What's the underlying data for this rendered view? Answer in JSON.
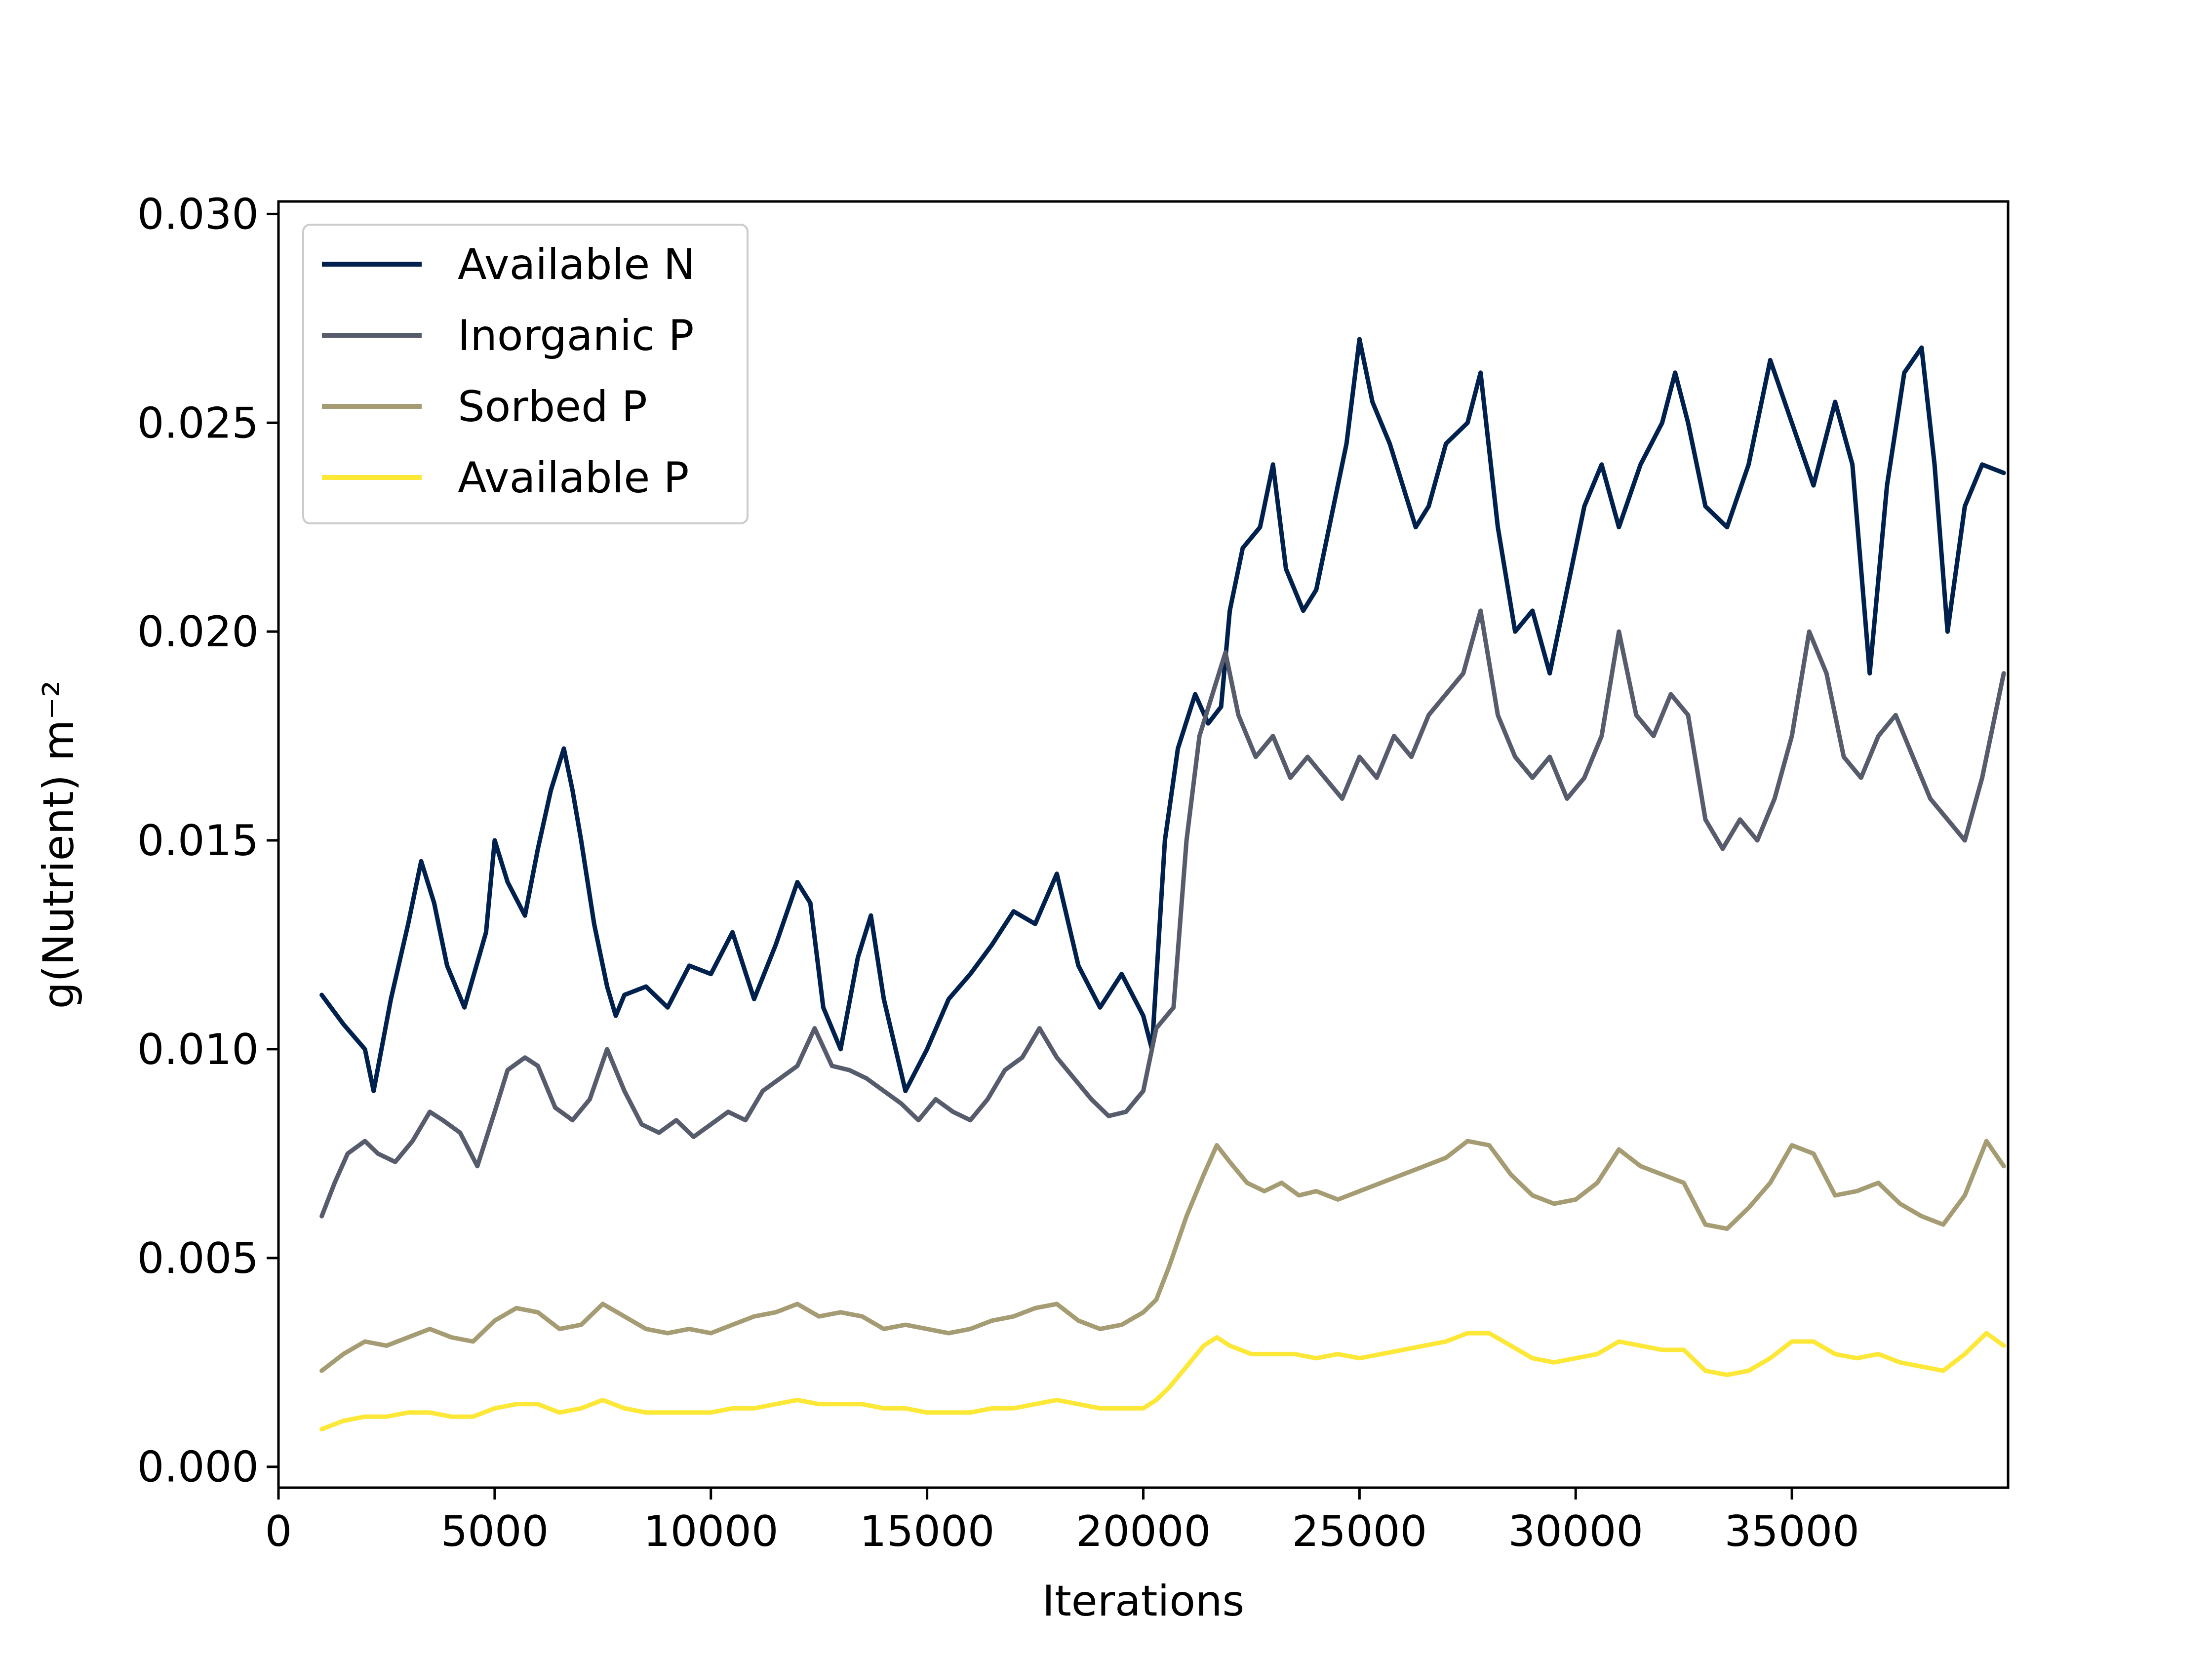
{
  "chart_data": {
    "type": "line",
    "title": "",
    "xlabel": "Iterations",
    "ylabel": "g(Nutrient) m⁻²",
    "xlim": [
      0,
      40000
    ],
    "ylim": [
      -0.0005,
      0.0303
    ],
    "xticks": [
      0,
      5000,
      10000,
      15000,
      20000,
      25000,
      30000,
      35000
    ],
    "xtick_labels": [
      "0",
      "5000",
      "10000",
      "15000",
      "20000",
      "25000",
      "30000",
      "35000"
    ],
    "yticks": [
      0.0,
      0.005,
      0.01,
      0.015,
      0.02,
      0.025,
      0.03
    ],
    "ytick_labels": [
      "0.000",
      "0.005",
      "0.010",
      "0.015",
      "0.020",
      "0.025",
      "0.030"
    ],
    "grid": false,
    "legend_position": "top-left",
    "series": [
      {
        "name": "Available N",
        "color": "#00204d",
        "x": [
          1000,
          1500,
          2000,
          2200,
          2600,
          3000,
          3300,
          3600,
          3900,
          4300,
          4800,
          5000,
          5300,
          5700,
          6000,
          6300,
          6600,
          6800,
          7000,
          7300,
          7600,
          7800,
          8000,
          8500,
          9000,
          9500,
          10000,
          10500,
          11000,
          11500,
          12000,
          12300,
          12600,
          13000,
          13400,
          13700,
          14000,
          14500,
          15000,
          15500,
          16000,
          16500,
          17000,
          17500,
          18000,
          18500,
          19000,
          19500,
          20000,
          20200,
          20500,
          20800,
          21200,
          21500,
          21800,
          22000,
          22300,
          22700,
          23000,
          23300,
          23700,
          24000,
          24400,
          24700,
          25000,
          25300,
          25700,
          26000,
          26300,
          26600,
          27000,
          27500,
          27800,
          28200,
          28600,
          29000,
          29400,
          29800,
          30200,
          30600,
          31000,
          31500,
          32000,
          32300,
          32600,
          33000,
          33500,
          34000,
          34500,
          35000,
          35500,
          36000,
          36400,
          36800,
          37200,
          37600,
          38000,
          38300,
          38600,
          39000,
          39400,
          39900
        ],
        "y": [
          0.0113,
          0.0106,
          0.01,
          0.009,
          0.0112,
          0.013,
          0.0145,
          0.0135,
          0.012,
          0.011,
          0.0128,
          0.015,
          0.014,
          0.0132,
          0.0148,
          0.0162,
          0.0172,
          0.0162,
          0.015,
          0.013,
          0.0115,
          0.0108,
          0.0113,
          0.0115,
          0.011,
          0.012,
          0.0118,
          0.0128,
          0.0112,
          0.0125,
          0.014,
          0.0135,
          0.011,
          0.01,
          0.0122,
          0.0132,
          0.0112,
          0.009,
          0.01,
          0.0112,
          0.0118,
          0.0125,
          0.0133,
          0.013,
          0.0142,
          0.012,
          0.011,
          0.0118,
          0.0108,
          0.01,
          0.015,
          0.0172,
          0.0185,
          0.0178,
          0.0182,
          0.0205,
          0.022,
          0.0225,
          0.024,
          0.0215,
          0.0205,
          0.021,
          0.023,
          0.0245,
          0.027,
          0.0255,
          0.0245,
          0.0235,
          0.0225,
          0.023,
          0.0245,
          0.025,
          0.0262,
          0.0225,
          0.02,
          0.0205,
          0.019,
          0.021,
          0.023,
          0.024,
          0.0225,
          0.024,
          0.025,
          0.0262,
          0.025,
          0.023,
          0.0225,
          0.024,
          0.0265,
          0.025,
          0.0235,
          0.0255,
          0.024,
          0.019,
          0.0235,
          0.0262,
          0.0268,
          0.024,
          0.02,
          0.023,
          0.024,
          0.0238
        ]
      },
      {
        "name": "Inorganic P",
        "color": "#575c6d",
        "x": [
          1000,
          1300,
          1600,
          2000,
          2300,
          2700,
          3100,
          3500,
          3800,
          4200,
          4600,
          5000,
          5300,
          5700,
          6000,
          6400,
          6800,
          7200,
          7600,
          8000,
          8400,
          8800,
          9200,
          9600,
          10000,
          10400,
          10800,
          11200,
          11600,
          12000,
          12400,
          12800,
          13200,
          13600,
          14000,
          14400,
          14800,
          15200,
          15600,
          16000,
          16400,
          16800,
          17200,
          17600,
          18000,
          18400,
          18800,
          19200,
          19600,
          20000,
          20300,
          20700,
          21000,
          21300,
          21600,
          21900,
          22200,
          22600,
          23000,
          23400,
          23800,
          24200,
          24600,
          25000,
          25400,
          25800,
          26200,
          26600,
          27000,
          27400,
          27800,
          28200,
          28600,
          29000,
          29400,
          29800,
          30200,
          30600,
          31000,
          31400,
          31800,
          32200,
          32600,
          33000,
          33400,
          33800,
          34200,
          34600,
          35000,
          35400,
          35800,
          36200,
          36600,
          37000,
          37400,
          37800,
          38200,
          38600,
          39000,
          39400,
          39900
        ],
        "y": [
          0.006,
          0.0068,
          0.0075,
          0.0078,
          0.0075,
          0.0073,
          0.0078,
          0.0085,
          0.0083,
          0.008,
          0.0072,
          0.0085,
          0.0095,
          0.0098,
          0.0096,
          0.0086,
          0.0083,
          0.0088,
          0.01,
          0.009,
          0.0082,
          0.008,
          0.0083,
          0.0079,
          0.0082,
          0.0085,
          0.0083,
          0.009,
          0.0093,
          0.0096,
          0.0105,
          0.0096,
          0.0095,
          0.0093,
          0.009,
          0.0087,
          0.0083,
          0.0088,
          0.0085,
          0.0083,
          0.0088,
          0.0095,
          0.0098,
          0.0105,
          0.0098,
          0.0093,
          0.0088,
          0.0084,
          0.0085,
          0.009,
          0.0105,
          0.011,
          0.015,
          0.0175,
          0.0185,
          0.0195,
          0.018,
          0.017,
          0.0175,
          0.0165,
          0.017,
          0.0165,
          0.016,
          0.017,
          0.0165,
          0.0175,
          0.017,
          0.018,
          0.0185,
          0.019,
          0.0205,
          0.018,
          0.017,
          0.0165,
          0.017,
          0.016,
          0.0165,
          0.0175,
          0.02,
          0.018,
          0.0175,
          0.0185,
          0.018,
          0.0155,
          0.0148,
          0.0155,
          0.015,
          0.016,
          0.0175,
          0.02,
          0.019,
          0.017,
          0.0165,
          0.0175,
          0.018,
          0.017,
          0.016,
          0.0155,
          0.015,
          0.0165,
          0.019
        ]
      },
      {
        "name": "Sorbed P",
        "color": "#a59c74",
        "x": [
          1000,
          1500,
          2000,
          2500,
          3000,
          3500,
          4000,
          4500,
          5000,
          5500,
          6000,
          6500,
          7000,
          7500,
          8000,
          8500,
          9000,
          9500,
          10000,
          10500,
          11000,
          11500,
          12000,
          12500,
          13000,
          13500,
          14000,
          14500,
          15000,
          15500,
          16000,
          16500,
          17000,
          17500,
          18000,
          18500,
          19000,
          19500,
          20000,
          20300,
          20600,
          21000,
          21400,
          21700,
          22000,
          22400,
          22800,
          23200,
          23600,
          24000,
          24500,
          25000,
          25500,
          26000,
          26500,
          27000,
          27500,
          28000,
          28500,
          29000,
          29500,
          30000,
          30500,
          31000,
          31500,
          32000,
          32500,
          33000,
          33500,
          34000,
          34500,
          35000,
          35500,
          36000,
          36500,
          37000,
          37500,
          38000,
          38500,
          39000,
          39500,
          39900
        ],
        "y": [
          0.0023,
          0.0027,
          0.003,
          0.0029,
          0.0031,
          0.0033,
          0.0031,
          0.003,
          0.0035,
          0.0038,
          0.0037,
          0.0033,
          0.0034,
          0.0039,
          0.0036,
          0.0033,
          0.0032,
          0.0033,
          0.0032,
          0.0034,
          0.0036,
          0.0037,
          0.0039,
          0.0036,
          0.0037,
          0.0036,
          0.0033,
          0.0034,
          0.0033,
          0.0032,
          0.0033,
          0.0035,
          0.0036,
          0.0038,
          0.0039,
          0.0035,
          0.0033,
          0.0034,
          0.0037,
          0.004,
          0.0048,
          0.006,
          0.007,
          0.0077,
          0.0073,
          0.0068,
          0.0066,
          0.0068,
          0.0065,
          0.0066,
          0.0064,
          0.0066,
          0.0068,
          0.007,
          0.0072,
          0.0074,
          0.0078,
          0.0077,
          0.007,
          0.0065,
          0.0063,
          0.0064,
          0.0068,
          0.0076,
          0.0072,
          0.007,
          0.0068,
          0.0058,
          0.0057,
          0.0062,
          0.0068,
          0.0077,
          0.0075,
          0.0065,
          0.0066,
          0.0068,
          0.0063,
          0.006,
          0.0058,
          0.0065,
          0.0078,
          0.0072
        ]
      },
      {
        "name": "Available P",
        "color": "#fde737",
        "x": [
          1000,
          1500,
          2000,
          2500,
          3000,
          3500,
          4000,
          4500,
          5000,
          5500,
          6000,
          6500,
          7000,
          7500,
          8000,
          8500,
          9000,
          9500,
          10000,
          10500,
          11000,
          11500,
          12000,
          12500,
          13000,
          13500,
          14000,
          14500,
          15000,
          15500,
          16000,
          16500,
          17000,
          17500,
          18000,
          18500,
          19000,
          19500,
          20000,
          20300,
          20600,
          21000,
          21400,
          21700,
          22000,
          22500,
          23000,
          23500,
          24000,
          24500,
          25000,
          25500,
          26000,
          26500,
          27000,
          27500,
          28000,
          28500,
          29000,
          29500,
          30000,
          30500,
          31000,
          31500,
          32000,
          32500,
          33000,
          33500,
          34000,
          34500,
          35000,
          35500,
          36000,
          36500,
          37000,
          37500,
          38000,
          38500,
          39000,
          39500,
          39900
        ],
        "y": [
          0.0009,
          0.0011,
          0.0012,
          0.0012,
          0.0013,
          0.0013,
          0.0012,
          0.0012,
          0.0014,
          0.0015,
          0.0015,
          0.0013,
          0.0014,
          0.0016,
          0.0014,
          0.0013,
          0.0013,
          0.0013,
          0.0013,
          0.0014,
          0.0014,
          0.0015,
          0.0016,
          0.0015,
          0.0015,
          0.0015,
          0.0014,
          0.0014,
          0.0013,
          0.0013,
          0.0013,
          0.0014,
          0.0014,
          0.0015,
          0.0016,
          0.0015,
          0.0014,
          0.0014,
          0.0014,
          0.0016,
          0.0019,
          0.0024,
          0.0029,
          0.0031,
          0.0029,
          0.0027,
          0.0027,
          0.0027,
          0.0026,
          0.0027,
          0.0026,
          0.0027,
          0.0028,
          0.0029,
          0.003,
          0.0032,
          0.0032,
          0.0029,
          0.0026,
          0.0025,
          0.0026,
          0.0027,
          0.003,
          0.0029,
          0.0028,
          0.0028,
          0.0023,
          0.0022,
          0.0023,
          0.0026,
          0.003,
          0.003,
          0.0027,
          0.0026,
          0.0027,
          0.0025,
          0.0024,
          0.0023,
          0.0027,
          0.0032,
          0.0029
        ]
      }
    ]
  }
}
